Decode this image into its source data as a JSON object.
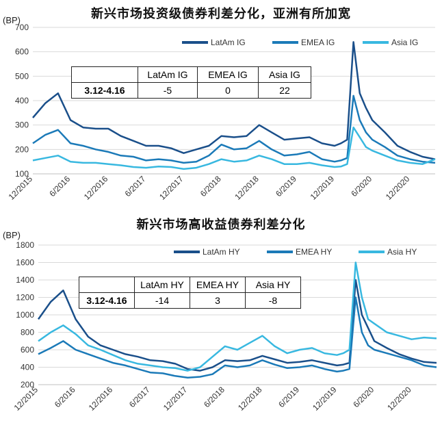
{
  "chart_data": [
    {
      "type": "line",
      "title": "新兴市场投资级债券利差分化，亚洲有所加宽",
      "ylabel": "(BP)",
      "ylim": [
        100,
        700
      ],
      "yticks": [
        100,
        200,
        300,
        400,
        500,
        600,
        700
      ],
      "xticks": [
        "12/2015",
        "6/2016",
        "12/2016",
        "6/2017",
        "12/2017",
        "6/2018",
        "12/2018",
        "6/2019",
        "12/2019",
        "6/2020",
        "12/2020"
      ],
      "x": [
        "2015-12",
        "2016-02",
        "2016-04",
        "2016-06",
        "2016-08",
        "2016-10",
        "2016-12",
        "2017-02",
        "2017-04",
        "2017-06",
        "2017-08",
        "2017-10",
        "2017-12",
        "2018-02",
        "2018-04",
        "2018-06",
        "2018-08",
        "2018-10",
        "2018-12",
        "2019-02",
        "2019-04",
        "2019-06",
        "2019-08",
        "2019-10",
        "2019-12",
        "2020-01",
        "2020-02",
        "2020-03",
        "2020-04",
        "2020-05",
        "2020-06",
        "2020-08",
        "2020-10",
        "2020-12",
        "2021-02",
        "2021-04"
      ],
      "legend_position": "top-right",
      "grid": "horizontal",
      "series": [
        {
          "name": "LatAm IG",
          "color": "#1a4f8a",
          "values": [
            330,
            390,
            430,
            320,
            290,
            285,
            285,
            255,
            235,
            215,
            215,
            205,
            185,
            200,
            215,
            255,
            250,
            255,
            300,
            270,
            240,
            245,
            250,
            225,
            215,
            225,
            240,
            640,
            430,
            370,
            320,
            270,
            215,
            190,
            170,
            160
          ]
        },
        {
          "name": "EMEA IG",
          "color": "#1b7ab8",
          "values": [
            225,
            260,
            280,
            225,
            215,
            200,
            190,
            175,
            170,
            155,
            160,
            155,
            145,
            150,
            175,
            220,
            200,
            205,
            235,
            200,
            175,
            180,
            190,
            160,
            150,
            155,
            165,
            420,
            320,
            270,
            240,
            210,
            175,
            160,
            150,
            145
          ]
        },
        {
          "name": "Asia IG",
          "color": "#38b8e0",
          "values": [
            155,
            165,
            175,
            150,
            145,
            145,
            140,
            135,
            128,
            125,
            130,
            128,
            120,
            125,
            140,
            160,
            150,
            155,
            175,
            160,
            140,
            140,
            145,
            135,
            128,
            130,
            140,
            290,
            250,
            210,
            195,
            175,
            155,
            145,
            140,
            160
          ]
        }
      ],
      "table": {
        "headers": [
          "",
          "LatAm IG",
          "EMEA IG",
          "Asia IG"
        ],
        "row": [
          "3.12-4.16",
          "-5",
          "0",
          "22"
        ]
      }
    },
    {
      "type": "line",
      "title": "新兴市场高收益债券利差分化",
      "ylabel": "(BP)",
      "ylim": [
        200,
        1800
      ],
      "yticks": [
        200,
        400,
        600,
        800,
        1000,
        1200,
        1400,
        1600,
        1800
      ],
      "xticks": [
        "12/2015",
        "6/2016",
        "12/2016",
        "6/2017",
        "12/2017",
        "6/2018",
        "12/2018",
        "6/2019",
        "12/2019",
        "6/2020",
        "12/2020"
      ],
      "x": [
        "2015-12",
        "2016-02",
        "2016-04",
        "2016-06",
        "2016-08",
        "2016-10",
        "2016-12",
        "2017-02",
        "2017-04",
        "2017-06",
        "2017-08",
        "2017-10",
        "2017-12",
        "2018-02",
        "2018-04",
        "2018-06",
        "2018-08",
        "2018-10",
        "2018-12",
        "2019-02",
        "2019-04",
        "2019-06",
        "2019-08",
        "2019-10",
        "2019-12",
        "2020-01",
        "2020-02",
        "2020-03",
        "2020-04",
        "2020-05",
        "2020-06",
        "2020-08",
        "2020-10",
        "2020-12",
        "2021-02",
        "2021-04"
      ],
      "legend_position": "top-right",
      "grid": "horizontal",
      "series": [
        {
          "name": "LatAm HY",
          "color": "#1a4f8a",
          "values": [
            950,
            1150,
            1280,
            950,
            750,
            650,
            600,
            550,
            520,
            480,
            470,
            440,
            380,
            360,
            400,
            480,
            470,
            480,
            530,
            490,
            450,
            460,
            480,
            450,
            420,
            430,
            450,
            1400,
            1000,
            850,
            700,
            620,
            550,
            500,
            460,
            450
          ]
        },
        {
          "name": "EMEA HY",
          "color": "#1b7ab8",
          "values": [
            550,
            620,
            700,
            600,
            550,
            500,
            450,
            420,
            380,
            340,
            330,
            300,
            280,
            290,
            320,
            420,
            400,
            420,
            480,
            430,
            390,
            400,
            420,
            380,
            350,
            360,
            380,
            1200,
            800,
            650,
            600,
            560,
            520,
            480,
            420,
            400
          ]
        },
        {
          "name": "Asia HY",
          "color": "#38b8e0",
          "values": [
            700,
            800,
            880,
            780,
            650,
            600,
            540,
            480,
            440,
            420,
            400,
            390,
            360,
            400,
            520,
            640,
            600,
            680,
            760,
            640,
            560,
            600,
            620,
            560,
            540,
            560,
            600,
            1600,
            1200,
            950,
            900,
            800,
            760,
            720,
            740,
            730
          ]
        }
      ],
      "table": {
        "headers": [
          "",
          "LatAm HY",
          "EMEA HY",
          "Asia HY"
        ],
        "row": [
          "3.12-4.16",
          "-14",
          "3",
          "-8"
        ]
      }
    }
  ]
}
